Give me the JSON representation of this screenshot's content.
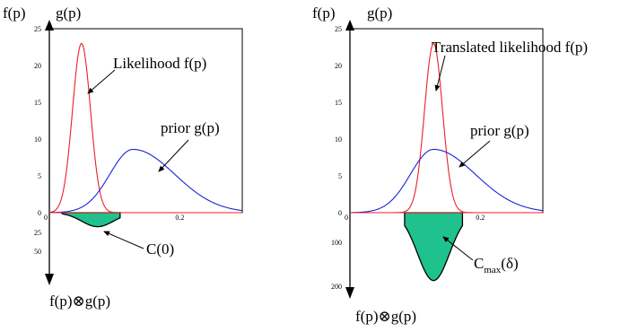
{
  "chart_data": [
    {
      "type": "line",
      "x_range": [
        0,
        0.3
      ],
      "upper_axis": {
        "label_left": "f(p)",
        "label_right": "g(p)",
        "ylim": [
          0,
          25
        ],
        "yticks": [
          "25",
          "20",
          "15",
          "10",
          "5",
          "0"
        ],
        "xticks": [
          "0",
          "0.2"
        ]
      },
      "series": [
        {
          "name": "Likelihood f(p)",
          "color": "#e8202a",
          "shape": "gaussian",
          "peak_x": 0.05,
          "peak_y": 23,
          "width": 0.014
        },
        {
          "name": "prior g(p)",
          "color": "#1a22d6",
          "shape": "skewed",
          "peak_x": 0.13,
          "peak_y": 8.6,
          "width_left": 0.036,
          "width_right": 0.065
        }
      ],
      "lower_axis": {
        "label": "f(p)⊗g(p)",
        "ylim": [
          0,
          55
        ],
        "yticks": [
          "25",
          "50"
        ]
      },
      "product": {
        "label": "C(0)",
        "color": "#1fc28c",
        "x_start": 0.02,
        "x_end": 0.11,
        "peak_x": 0.075,
        "peak_depth": 26
      },
      "annotations": [
        "Likelihood f(p)",
        "prior g(p)",
        "C(0)"
      ]
    },
    {
      "type": "line",
      "x_range": [
        0,
        0.3
      ],
      "upper_axis": {
        "label_left": "f(p)",
        "label_right": "g(p)",
        "ylim": [
          0,
          25
        ],
        "yticks": [
          "25",
          "20",
          "15",
          "10",
          "5",
          "0"
        ],
        "xticks": [
          "0",
          "0.2"
        ]
      },
      "series": [
        {
          "name": "Translated likelihood f(p)",
          "color": "#e8202a",
          "shape": "gaussian",
          "peak_x": 0.13,
          "peak_y": 23,
          "width": 0.014
        },
        {
          "name": "prior g(p)",
          "color": "#1a22d6",
          "shape": "skewed",
          "peak_x": 0.13,
          "peak_y": 8.6,
          "width_left": 0.036,
          "width_right": 0.065
        }
      ],
      "lower_axis": {
        "label": "f(p)⊗g(p)",
        "ylim": [
          0,
          200
        ],
        "yticks": [
          "100",
          "200"
        ]
      },
      "product": {
        "label_main": "C",
        "label_sub": "max",
        "label_arg": "(δ)",
        "color": "#1fc28c",
        "x_start": 0.085,
        "x_end": 0.175,
        "peak_x": 0.13,
        "peak_depth": 180
      },
      "annotations": [
        "Translated likelihood f(p)",
        "prior g(p)",
        "Cmax(δ)"
      ]
    }
  ]
}
